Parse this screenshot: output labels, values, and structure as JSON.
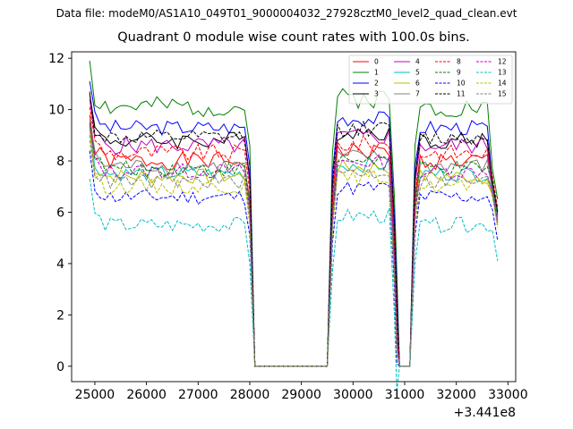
{
  "figure": {
    "suptitle": "Data file: modeM0/AS1A10_049T01_9000004032_27928cztM0_level2_quad_clean.evt",
    "title": "Quadrant 0 module wise count rates with 100.0s bins.",
    "x_offset_label": "+3.441e8"
  },
  "chart_data": {
    "type": "line",
    "title": "Quadrant 0 module wise count rates with 100.0s bins.",
    "xlabel": "",
    "ylabel": "",
    "x_offset": "+3.441e8",
    "xlim": [
      24550,
      33150
    ],
    "ylim": [
      -0.6,
      12.25
    ],
    "xticks": [
      25000,
      26000,
      27000,
      28000,
      29000,
      30000,
      31000,
      32000,
      33000
    ],
    "yticks": [
      0,
      2,
      4,
      6,
      8,
      10,
      12
    ],
    "grid": false,
    "legend_position": "top-right",
    "segments": [
      {
        "start": 24900,
        "end": 27900,
        "count": 31
      },
      {
        "start": 28100,
        "end": 29500,
        "count": 15
      },
      {
        "start": 29700,
        "end": 30700,
        "count": 11
      },
      {
        "start": 30900,
        "end": 31100,
        "count": 3
      },
      {
        "start": 31300,
        "end": 32700,
        "count": 15
      }
    ],
    "drop_points": [
      28000,
      29600,
      30800,
      30850,
      31200,
      32800
    ],
    "series": [
      {
        "name": "0",
        "color": "#ff0000",
        "dash": "solid",
        "base": 8.0,
        "amp": 0.35,
        "end": 5.6,
        "seed": 1
      },
      {
        "name": "1",
        "color": "#008000",
        "dash": "solid",
        "base": 10.1,
        "amp": 0.4,
        "end": 6.5,
        "seed": 2
      },
      {
        "name": "2",
        "color": "#0000ff",
        "dash": "solid",
        "base": 9.3,
        "amp": 0.3,
        "end": 5.9,
        "seed": 3
      },
      {
        "name": "3",
        "color": "#000000",
        "dash": "solid",
        "base": 8.8,
        "amp": 0.35,
        "end": 6.0,
        "seed": 4
      },
      {
        "name": "4",
        "color": "#bf00bf",
        "dash": "solid",
        "base": 8.6,
        "amp": 0.35,
        "end": 5.8,
        "seed": 5
      },
      {
        "name": "5",
        "color": "#00bfbf",
        "dash": "solid",
        "base": 7.5,
        "amp": 0.3,
        "end": 5.7,
        "seed": 6
      },
      {
        "name": "6",
        "color": "#bfbf00",
        "dash": "solid",
        "base": 7.4,
        "amp": 0.3,
        "end": 5.5,
        "seed": 7
      },
      {
        "name": "7",
        "color": "#808080",
        "dash": "solid",
        "base": 7.8,
        "amp": 0.3,
        "end": 5.6,
        "seed": 8
      },
      {
        "name": "8",
        "color": "#ff0000",
        "dash": "dashed",
        "base": 8.3,
        "amp": 0.35,
        "end": 6.2,
        "seed": 9
      },
      {
        "name": "9",
        "color": "#008000",
        "dash": "dashed",
        "base": 7.7,
        "amp": 0.3,
        "end": 5.9,
        "seed": 10
      },
      {
        "name": "10",
        "color": "#0000ff",
        "dash": "dashed",
        "base": 6.6,
        "amp": 0.3,
        "end": 4.9,
        "seed": 11
      },
      {
        "name": "11",
        "color": "#000000",
        "dash": "dashed",
        "base": 8.9,
        "amp": 0.3,
        "end": 6.0,
        "seed": 12
      },
      {
        "name": "12",
        "color": "#bf00bf",
        "dash": "dashed",
        "base": 7.6,
        "amp": 0.3,
        "end": 5.6,
        "seed": 13
      },
      {
        "name": "13",
        "color": "#00bfbf",
        "dash": "dashed",
        "base": 5.5,
        "amp": 0.3,
        "end": 4.1,
        "seed": 14
      },
      {
        "name": "14",
        "color": "#bfbf00",
        "dash": "dashed",
        "base": 7.0,
        "amp": 0.3,
        "end": 5.4,
        "seed": 15
      },
      {
        "name": "15",
        "color": "#808080",
        "dash": "dashed",
        "base": 7.2,
        "amp": 0.3,
        "end": 5.5,
        "seed": 16
      }
    ]
  }
}
